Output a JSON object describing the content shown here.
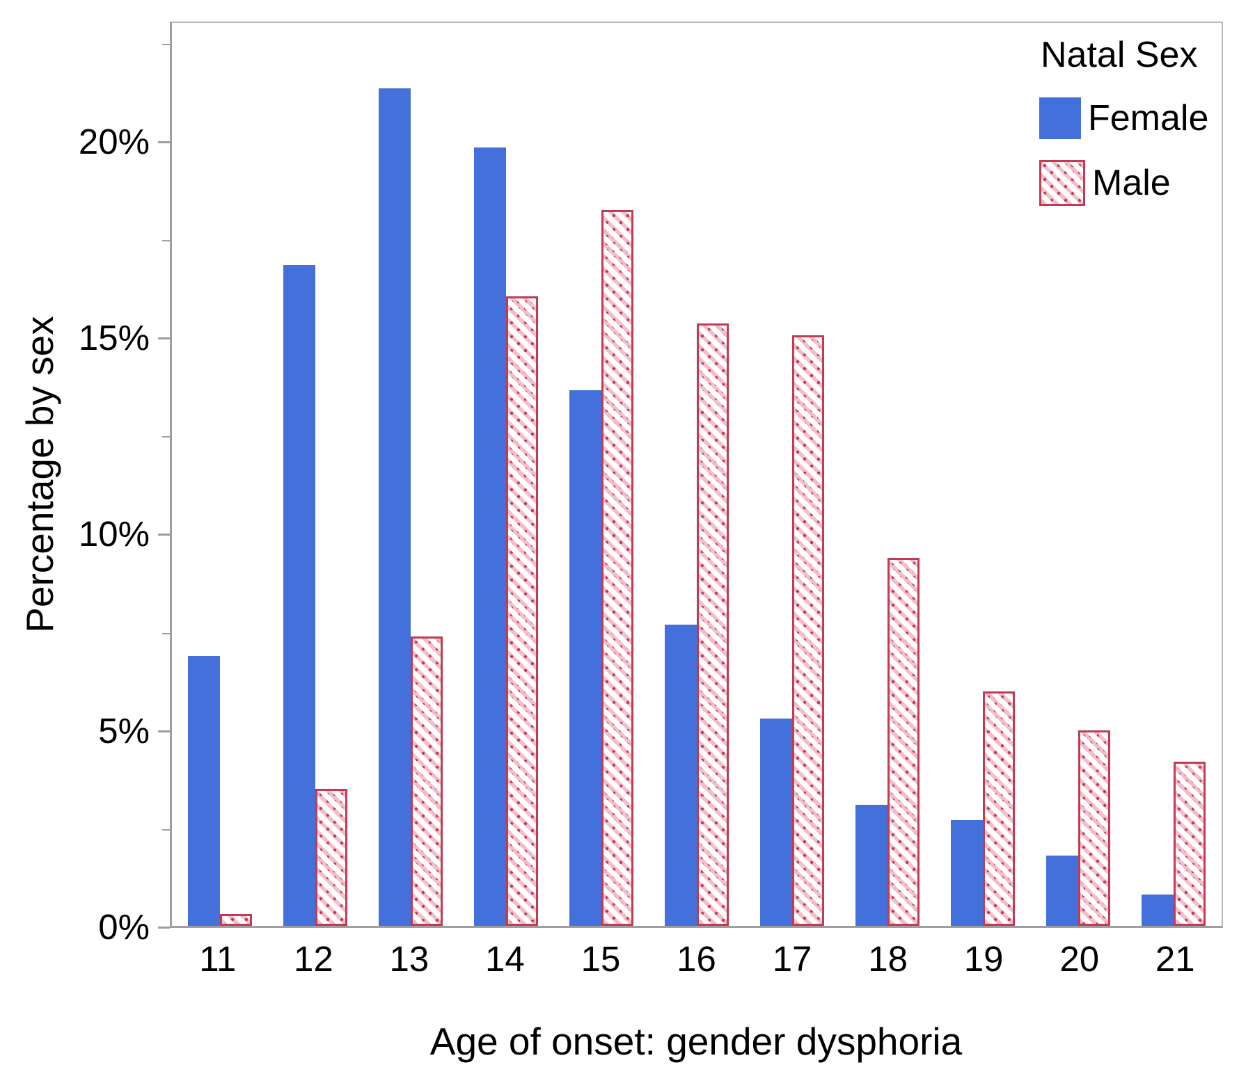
{
  "chart_data": {
    "type": "bar",
    "title": "",
    "xlabel": "Age of onset: gender dysphoria",
    "ylabel": "Percentage by sex",
    "categories": [
      "11",
      "12",
      "13",
      "14",
      "15",
      "16",
      "17",
      "18",
      "19",
      "20",
      "21"
    ],
    "series": [
      {
        "name": "Female",
        "style": "solid",
        "color": "#4470DB",
        "values": [
          6.9,
          16.9,
          21.4,
          19.9,
          13.7,
          7.7,
          5.3,
          3.1,
          2.7,
          1.8,
          0.8
        ]
      },
      {
        "name": "Male",
        "style": "hatched",
        "color": "#C23B52",
        "hatch_fill": "#F4BDC8",
        "values": [
          0.3,
          3.5,
          7.4,
          16.1,
          18.3,
          15.4,
          15.1,
          9.4,
          6.0,
          5.0,
          4.2
        ]
      }
    ],
    "ylim": [
      0,
      23.08
    ],
    "y_major_ticks": [
      {
        "value": 0,
        "label": "0%"
      },
      {
        "value": 5,
        "label": "5%"
      },
      {
        "value": 10,
        "label": "10%"
      },
      {
        "value": 15,
        "label": "15%"
      },
      {
        "value": 20,
        "label": "20%"
      }
    ],
    "y_minor_ticks": [
      2.5,
      7.5,
      12.5,
      17.5,
      22.5
    ],
    "legend": {
      "title": "Natal Sex",
      "position": "top-right"
    },
    "grid": false
  },
  "colors": {
    "female_bar": "#4470DB",
    "male_line": "#C23B52",
    "male_hatch_fill": "#F4BDC8",
    "axis": "#9F9F9F",
    "frame": "#B8B8B8",
    "text": "#000000",
    "background": "#FFFFFF"
  }
}
